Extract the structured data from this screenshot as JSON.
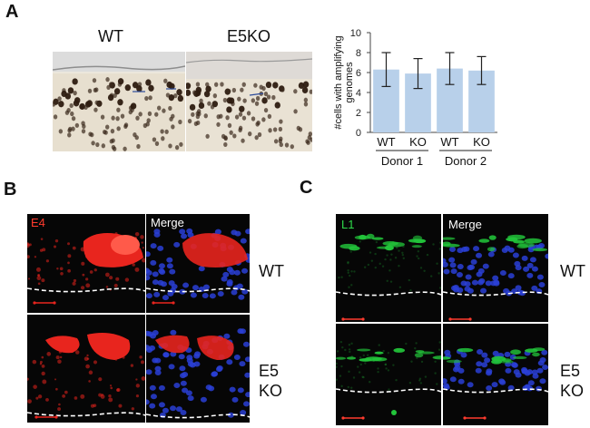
{
  "panels": {
    "a": {
      "letter": "A",
      "wt_header": "WT",
      "ko_header": "E5KO"
    },
    "b": {
      "letter": "B",
      "channel": "E4",
      "merge": "Merge",
      "row1": "WT",
      "row2_line1": "E5",
      "row2_line2": "KO"
    },
    "c": {
      "letter": "C",
      "channel": "L1",
      "merge": "Merge",
      "row1": "WT",
      "row2_line1": "E5",
      "row2_line2": "KO"
    }
  },
  "colors": {
    "bar_fill": "#b8d0ea",
    "e4_red": "#e8251e",
    "l1_green": "#22c43a",
    "nuclei_blue": "#2a3fd6",
    "dapi_stain": "#3b2a1c"
  },
  "chart_data": {
    "type": "bar",
    "ylabel": "#cells with amplifying genomes",
    "ylim": [
      0,
      10
    ],
    "yticks": [
      0,
      2,
      4,
      6,
      8,
      10
    ],
    "categories": [
      "WT",
      "KO",
      "WT",
      "KO"
    ],
    "groups": [
      "Donor 1",
      "Donor 2"
    ],
    "values": [
      6.3,
      5.9,
      6.4,
      6.2
    ],
    "errors": [
      1.7,
      1.5,
      1.6,
      1.4
    ],
    "grid": false
  }
}
